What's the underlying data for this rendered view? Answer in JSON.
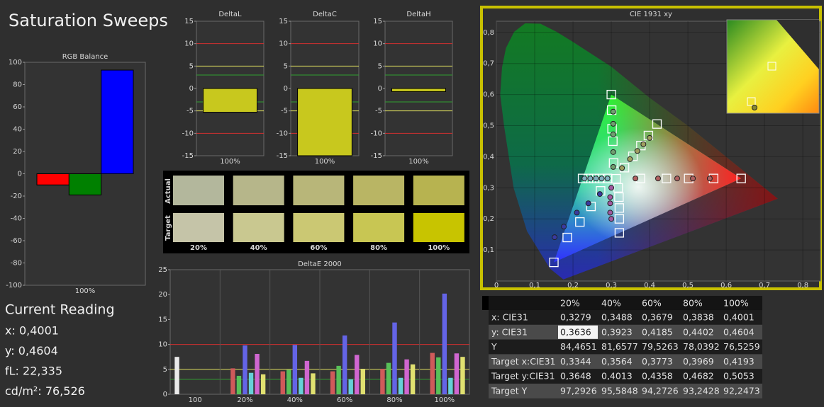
{
  "header": {
    "title": "Saturation Sweeps"
  },
  "current_reading": {
    "title": "Current Reading",
    "lines": [
      "x: 0,4001",
      "y: 0,4604",
      "fL: 22,335",
      "cd/m²: 76,526"
    ]
  },
  "swatches": {
    "row_labels": [
      "Actual",
      "Target"
    ],
    "columns": [
      "20%",
      "40%",
      "60%",
      "80%",
      "100%"
    ],
    "actual_colors": [
      "#b3b79c",
      "#b6b68a",
      "#b8b679",
      "#b9b564",
      "#b7b350"
    ],
    "target_colors": [
      "#c5c4a8",
      "#c9c890",
      "#cbc873",
      "#c8c653",
      "#c8c400"
    ]
  },
  "table": {
    "header": [
      "20%",
      "40%",
      "60%",
      "80%",
      "100%"
    ],
    "rows": [
      [
        "x: CIE31",
        "0,3279",
        "0,3488",
        "0,3679",
        "0,3838",
        "0,4001"
      ],
      [
        "y: CIE31",
        "0,3636",
        "0,3923",
        "0,4185",
        "0,4402",
        "0,4604"
      ],
      [
        "Y",
        "84,4651",
        "81,6577",
        "79,5263",
        "78,0392",
        "76,5259"
      ],
      [
        "Target x:CIE31",
        "0,3344",
        "0,3564",
        "0,3773",
        "0,3969",
        "0,4193"
      ],
      [
        "Target y:CIE31",
        "0,3648",
        "0,4013",
        "0,4358",
        "0,4682",
        "0,5053"
      ],
      [
        "Target Y",
        "97,2926",
        "95,5848",
        "94,2726",
        "93,2428",
        "92,2473"
      ]
    ]
  },
  "chart_data": [
    {
      "type": "bar",
      "title": "RGB Balance",
      "categories": [
        "100%"
      ],
      "series": [
        {
          "color": "#ff0000",
          "values": [
            -10
          ]
        },
        {
          "color": "#008000",
          "values": [
            -19
          ]
        },
        {
          "color": "#0000ff",
          "values": [
            93
          ]
        }
      ],
      "ylim": [
        -100,
        100
      ],
      "yticks": [
        -100,
        -80,
        -60,
        -40,
        -20,
        0,
        20,
        40,
        60,
        80,
        100
      ]
    },
    {
      "type": "bar",
      "title": "DeltaL",
      "categories": [
        "100%"
      ],
      "values": [
        -5.3
      ],
      "color": "#c8c81e",
      "ylim": [
        -15,
        15
      ],
      "yticks": [
        -15,
        -10,
        -5,
        0,
        5,
        10,
        15
      ],
      "reference_lines": [
        {
          "value": 10,
          "color": "#d03030"
        },
        {
          "value": -10,
          "color": "#d03030"
        },
        {
          "value": 5,
          "color": "#e0e060"
        },
        {
          "value": -5,
          "color": "#e0e060"
        },
        {
          "value": 3,
          "color": "#30a030"
        },
        {
          "value": -3,
          "color": "#30a030"
        }
      ]
    },
    {
      "type": "bar",
      "title": "DeltaC",
      "categories": [
        "100%"
      ],
      "values": [
        -15
      ],
      "color": "#c8c81e",
      "ylim": [
        -15,
        15
      ],
      "yticks": [
        -15,
        -10,
        -5,
        0,
        5,
        10,
        15
      ],
      "reference_lines": [
        {
          "value": 10,
          "color": "#d03030"
        },
        {
          "value": -10,
          "color": "#d03030"
        },
        {
          "value": 5,
          "color": "#e0e060"
        },
        {
          "value": -5,
          "color": "#e0e060"
        },
        {
          "value": 3,
          "color": "#30a030"
        },
        {
          "value": -3,
          "color": "#30a030"
        }
      ]
    },
    {
      "type": "bar",
      "title": "DeltaH",
      "categories": [
        "100%"
      ],
      "values": [
        -0.7
      ],
      "color": "#c8c81e",
      "ylim": [
        -15,
        15
      ],
      "yticks": [
        -15,
        -10,
        -5,
        0,
        5,
        10,
        15
      ],
      "reference_lines": [
        {
          "value": 10,
          "color": "#d03030"
        },
        {
          "value": -10,
          "color": "#d03030"
        },
        {
          "value": 5,
          "color": "#e0e060"
        },
        {
          "value": -5,
          "color": "#e0e060"
        },
        {
          "value": 3,
          "color": "#30a030"
        },
        {
          "value": -3,
          "color": "#30a030"
        }
      ]
    },
    {
      "type": "bar",
      "title": "DeltaE 2000",
      "categories": [
        "100",
        "20%",
        "40%",
        "60%",
        "80%",
        "100%"
      ],
      "series": [
        {
          "color": "#eaeaea",
          "values": [
            7.5,
            null,
            null,
            null,
            null,
            null
          ]
        },
        {
          "color": "#d05a5a",
          "values": [
            null,
            5.2,
            4.6,
            4.6,
            5.1,
            8.3
          ]
        },
        {
          "color": "#58c058",
          "values": [
            null,
            3.7,
            4.9,
            5.7,
            6.3,
            7.4
          ]
        },
        {
          "color": "#6464e6",
          "values": [
            null,
            9.8,
            9.9,
            11.8,
            14.4,
            20.2
          ]
        },
        {
          "color": "#66d0d8",
          "values": [
            null,
            4.3,
            3.3,
            3.0,
            3.3,
            3.3
          ]
        },
        {
          "color": "#d066d0",
          "values": [
            null,
            8.1,
            6.7,
            7.9,
            7.0,
            8.2
          ]
        },
        {
          "color": "#e0e070",
          "values": [
            null,
            4.0,
            4.2,
            5.1,
            6.0,
            7.5
          ]
        }
      ],
      "ylim": [
        0,
        25
      ],
      "yticks": [
        0,
        5,
        10,
        15,
        20,
        25
      ],
      "reference_lines": [
        {
          "value": 10,
          "color": "#d03030"
        },
        {
          "value": 5,
          "color": "#e0e060"
        },
        {
          "value": 3,
          "color": "#30a030"
        }
      ]
    },
    {
      "type": "scatter",
      "title": "CIE 1931 xy",
      "xlim": [
        0,
        0.846
      ],
      "ylim": [
        0,
        0.836
      ],
      "xticks": [
        0,
        {
          "value": 0.1,
          "label": "0,1"
        },
        {
          "value": 0.2,
          "label": "0,2"
        },
        {
          "value": 0.3,
          "label": "0,3"
        },
        {
          "value": 0.4,
          "label": "0,4"
        },
        {
          "value": 0.5,
          "label": "0,5"
        },
        {
          "value": 0.6,
          "label": "0,6"
        },
        {
          "value": 0.7,
          "label": "0,7"
        },
        {
          "value": 0.8,
          "label": "0,8"
        }
      ],
      "yticks": [
        {
          "value": 0.1,
          "label": "0,1"
        },
        {
          "value": 0.2,
          "label": "0,2"
        },
        {
          "value": 0.3,
          "label": "0,3"
        },
        {
          "value": 0.4,
          "label": "0,4"
        },
        {
          "value": 0.5,
          "label": "0,5"
        },
        {
          "value": 0.6,
          "label": "0,6"
        },
        {
          "value": 0.7,
          "label": "0,7"
        },
        {
          "value": 0.8,
          "label": "0,8"
        }
      ],
      "series": [
        {
          "marker": "square",
          "color": "#ffffff",
          "x": [
            0.3127,
            0.376,
            0.444,
            0.502,
            0.567,
            0.639,
            0.306,
            0.304,
            0.302,
            0.301,
            0.3,
            0.272,
            0.247,
            0.218,
            0.185,
            0.15,
            0.29,
            0.27,
            0.255,
            0.24,
            0.225,
            0.318,
            0.32,
            0.321,
            0.321,
            0.321,
            0.3344,
            0.3564,
            0.3773,
            0.3969,
            0.4193
          ],
          "values": [
            0.329,
            0.33,
            0.33,
            0.33,
            0.33,
            0.33,
            0.38,
            0.45,
            0.49,
            0.55,
            0.6,
            0.29,
            0.24,
            0.19,
            0.14,
            0.06,
            0.33,
            0.33,
            0.33,
            0.33,
            0.33,
            0.3,
            0.27,
            0.235,
            0.2,
            0.155,
            0.3648,
            0.4013,
            0.4358,
            0.4682,
            0.5053
          ]
        },
        {
          "marker": "circle",
          "color": "#b06060",
          "x": [
            0.363,
            0.422,
            0.472,
            0.513,
            0.557
          ],
          "values": [
            0.33,
            0.33,
            0.33,
            0.33,
            0.33
          ]
        },
        {
          "marker": "circle",
          "color": "#6f9f6f",
          "x": [
            0.305,
            0.305,
            0.305,
            0.305,
            0.305
          ],
          "values": [
            0.367,
            0.415,
            0.472,
            0.506,
            0.545
          ]
        },
        {
          "marker": "circle",
          "color": "#3a3aa0",
          "x": [
            0.27,
            0.24,
            0.21,
            0.176,
            0.152
          ],
          "values": [
            0.28,
            0.25,
            0.22,
            0.175,
            0.141
          ]
        },
        {
          "marker": "circle",
          "color": "#80b0c0",
          "x": [
            0.29,
            0.275,
            0.26,
            0.245,
            0.23
          ],
          "values": [
            0.33,
            0.33,
            0.33,
            0.33,
            0.33
          ]
        },
        {
          "marker": "circle",
          "color": "#a058a0",
          "x": [
            0.3,
            0.297,
            0.297,
            0.297,
            0.3
          ],
          "values": [
            0.3,
            0.27,
            0.25,
            0.22,
            0.2
          ]
        },
        {
          "marker": "circle",
          "color": "#a0a060",
          "x": [
            0.3279,
            0.3488,
            0.3679,
            0.3838,
            0.4001
          ],
          "values": [
            0.3636,
            0.3923,
            0.4185,
            0.4402,
            0.4604
          ]
        }
      ]
    }
  ]
}
